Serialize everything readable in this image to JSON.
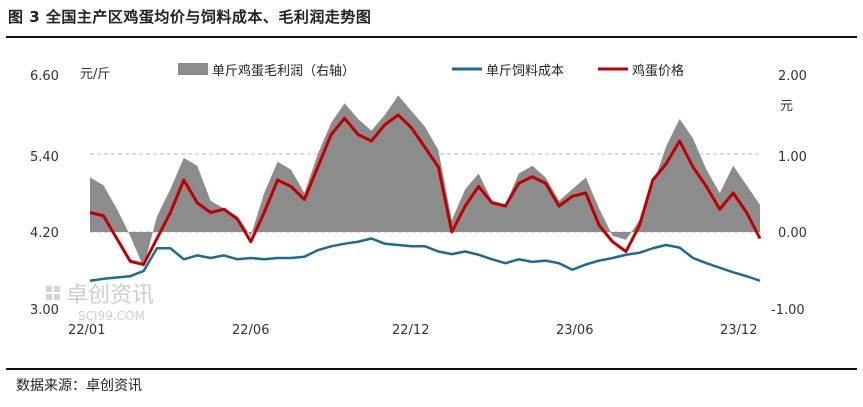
{
  "title": "图 3 全国主产区鸡蛋均价与饲料成本、毛利润走势图",
  "source": "数据来源：卓创资讯",
  "watermark": {
    "name": "卓创资讯",
    "site": "SCI99.COM"
  },
  "colors": {
    "profit": "#8c8c8c",
    "feed": "#1b6a9a",
    "egg": "#c00000"
  },
  "chart_data": {
    "type": "line",
    "x_labels": [
      "22/01",
      "22/06",
      "22/12",
      "23/06",
      "23/12"
    ],
    "left_axis": {
      "unit": "元/斤",
      "ticks": [
        "6.60",
        "5.40",
        "4.20",
        "3.00"
      ],
      "ylim": [
        3.0,
        6.6
      ]
    },
    "right_axis": {
      "unit": "元",
      "ticks": [
        "2.00",
        "1.00",
        "0.00",
        "-1.00"
      ],
      "ylim": [
        -1.0,
        2.0
      ]
    },
    "legend": [
      "单斤鸡蛋毛利润（右轴）",
      "单斤饲料成本",
      "鸡蛋价格"
    ],
    "x": [
      0,
      0.02,
      0.04,
      0.06,
      0.08,
      0.1,
      0.12,
      0.14,
      0.16,
      0.18,
      0.2,
      0.22,
      0.24,
      0.26,
      0.28,
      0.3,
      0.32,
      0.34,
      0.36,
      0.38,
      0.4,
      0.42,
      0.44,
      0.46,
      0.48,
      0.5,
      0.52,
      0.54,
      0.56,
      0.58,
      0.6,
      0.62,
      0.64,
      0.66,
      0.68,
      0.7,
      0.72,
      0.74,
      0.76,
      0.78,
      0.8,
      0.82,
      0.84,
      0.86,
      0.88,
      0.9,
      0.92,
      0.94,
      0.96,
      0.98,
      1.0
    ],
    "series": [
      {
        "name": "单斤鸡蛋毛利润（右轴）",
        "axis": "right",
        "kind": "area",
        "values": [
          0.7,
          0.6,
          0.3,
          -0.05,
          -0.45,
          0.2,
          0.55,
          0.95,
          0.85,
          0.4,
          0.3,
          0.2,
          -0.05,
          0.5,
          0.9,
          0.8,
          0.5,
          1.0,
          1.4,
          1.65,
          1.45,
          1.3,
          1.5,
          1.75,
          1.55,
          1.35,
          1.05,
          0.15,
          0.55,
          0.75,
          0.4,
          0.35,
          0.75,
          0.85,
          0.7,
          0.4,
          0.55,
          0.7,
          0.3,
          -0.05,
          -0.1,
          0.15,
          0.6,
          1.1,
          1.45,
          1.2,
          0.8,
          0.5,
          0.85,
          0.6,
          0.35
        ]
      },
      {
        "name": "单斤饲料成本",
        "axis": "left",
        "kind": "line",
        "values": [
          3.45,
          3.48,
          3.5,
          3.52,
          3.6,
          3.95,
          3.95,
          3.78,
          3.84,
          3.8,
          3.84,
          3.78,
          3.8,
          3.78,
          3.8,
          3.8,
          3.82,
          3.92,
          3.98,
          4.02,
          4.05,
          4.1,
          4.02,
          4.0,
          3.98,
          3.98,
          3.9,
          3.86,
          3.9,
          3.85,
          3.78,
          3.72,
          3.78,
          3.74,
          3.76,
          3.72,
          3.62,
          3.7,
          3.76,
          3.8,
          3.85,
          3.88,
          3.95,
          4.0,
          3.96,
          3.8,
          3.72,
          3.65,
          3.58,
          3.52,
          3.45
        ]
      },
      {
        "name": "鸡蛋价格",
        "axis": "left",
        "kind": "line",
        "values": [
          4.5,
          4.45,
          4.1,
          3.75,
          3.7,
          4.1,
          4.5,
          5.0,
          4.65,
          4.5,
          4.55,
          4.4,
          4.05,
          4.5,
          5.0,
          4.9,
          4.7,
          5.2,
          5.7,
          5.95,
          5.7,
          5.6,
          5.85,
          6.0,
          5.8,
          5.5,
          5.2,
          4.2,
          4.6,
          4.9,
          4.65,
          4.6,
          4.95,
          5.05,
          4.95,
          4.6,
          4.75,
          4.8,
          4.3,
          4.05,
          3.9,
          4.3,
          5.0,
          5.25,
          5.6,
          5.2,
          4.9,
          4.55,
          4.8,
          4.5,
          4.1
        ]
      }
    ]
  }
}
